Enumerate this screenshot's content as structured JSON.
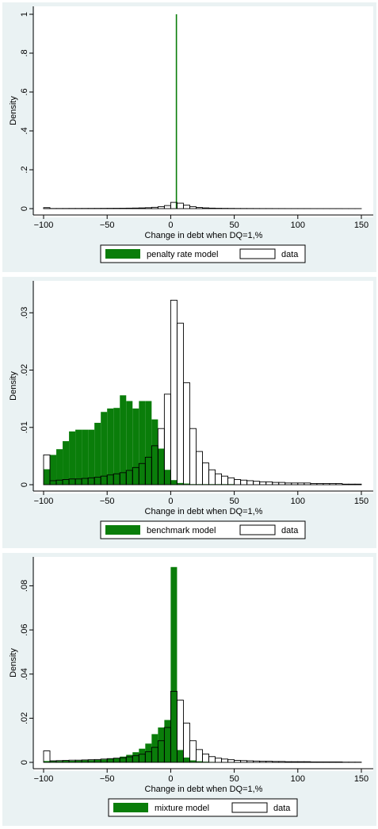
{
  "colors": {
    "model": "#0a7d0a",
    "data_fill": "#ffffff",
    "outline": "#000000",
    "panel_bg": "#eaf2f3",
    "plot_bg": "#ffffff"
  },
  "chart_data": [
    {
      "type": "bar",
      "subtype": "histogram",
      "xlabel": "Change in debt when DQ=1,%",
      "ylabel": "Density",
      "xlim": [
        -100,
        150
      ],
      "ylim": [
        0,
        1
      ],
      "x_ticks": [
        -100,
        -50,
        0,
        50,
        100,
        150
      ],
      "x_tick_labels": [
        "−100",
        "−50",
        "0",
        "50",
        "100",
        "150"
      ],
      "y_ticks": [
        0,
        0.2,
        0.4,
        0.6,
        0.8,
        1
      ],
      "y_tick_labels": [
        "0",
        ".2",
        ".4",
        ".6",
        ".8",
        "1"
      ],
      "grid": false,
      "legend_position": "bottom",
      "bin_width": 5,
      "model_bin_width": 1,
      "series": [
        {
          "name": "penalty rate model",
          "style": "filled",
          "bins": [
            [
              4,
              1.0
            ]
          ]
        },
        {
          "name": "data",
          "style": "outline",
          "bins": [
            [
              -100,
              0.0052
            ],
            [
              -95,
              0.0007
            ],
            [
              -90,
              0.0008
            ],
            [
              -85,
              0.0009
            ],
            [
              -80,
              0.001
            ],
            [
              -75,
              0.001
            ],
            [
              -70,
              0.0011
            ],
            [
              -65,
              0.0012
            ],
            [
              -60,
              0.0013
            ],
            [
              -55,
              0.0015
            ],
            [
              -50,
              0.0017
            ],
            [
              -45,
              0.0019
            ],
            [
              -40,
              0.0021
            ],
            [
              -35,
              0.0025
            ],
            [
              -30,
              0.003
            ],
            [
              -25,
              0.0037
            ],
            [
              -20,
              0.0048
            ],
            [
              -15,
              0.0068
            ],
            [
              -10,
              0.0098
            ],
            [
              -5,
              0.0158
            ],
            [
              0,
              0.0322
            ],
            [
              5,
              0.0282
            ],
            [
              10,
              0.0178
            ],
            [
              15,
              0.0098
            ],
            [
              20,
              0.0058
            ],
            [
              25,
              0.0038
            ],
            [
              30,
              0.0026
            ],
            [
              35,
              0.0019
            ],
            [
              40,
              0.0015
            ],
            [
              45,
              0.0012
            ],
            [
              50,
              0.0009
            ],
            [
              55,
              0.0008
            ],
            [
              60,
              0.0007
            ],
            [
              65,
              0.0006
            ],
            [
              70,
              0.0005
            ],
            [
              75,
              0.0005
            ],
            [
              80,
              0.0004
            ],
            [
              85,
              0.0004
            ],
            [
              90,
              0.0003
            ],
            [
              95,
              0.0003
            ],
            [
              100,
              0.0003
            ],
            [
              105,
              0.0003
            ],
            [
              110,
              0.0002
            ],
            [
              115,
              0.0002
            ],
            [
              120,
              0.0002
            ],
            [
              125,
              0.0002
            ],
            [
              130,
              0.0002
            ],
            [
              135,
              0.0001
            ],
            [
              140,
              0.0001
            ],
            [
              145,
              0.0001
            ]
          ]
        }
      ]
    },
    {
      "type": "bar",
      "subtype": "histogram",
      "xlabel": "Change in debt when DQ=1,%",
      "ylabel": "Density",
      "xlim": [
        -100,
        150
      ],
      "ylim": [
        0,
        0.0335
      ],
      "x_ticks": [
        -100,
        -50,
        0,
        50,
        100,
        150
      ],
      "x_tick_labels": [
        "−100",
        "−50",
        "0",
        "50",
        "100",
        "150"
      ],
      "y_ticks": [
        0,
        0.01,
        0.02,
        0.03
      ],
      "y_tick_labels": [
        "0",
        ".01",
        ".02",
        ".03"
      ],
      "grid": false,
      "legend_position": "bottom",
      "bin_width": 5,
      "model_bin_width": 5,
      "series": [
        {
          "name": "benchmark model",
          "style": "filled",
          "bins": [
            [
              -100,
              0.0027
            ],
            [
              -95,
              0.0052
            ],
            [
              -90,
              0.0062
            ],
            [
              -85,
              0.0076
            ],
            [
              -80,
              0.0093
            ],
            [
              -75,
              0.0096
            ],
            [
              -70,
              0.0096
            ],
            [
              -65,
              0.0096
            ],
            [
              -60,
              0.0108
            ],
            [
              -55,
              0.0127
            ],
            [
              -50,
              0.0133
            ],
            [
              -45,
              0.0134
            ],
            [
              -40,
              0.0156
            ],
            [
              -35,
              0.0146
            ],
            [
              -30,
              0.0133
            ],
            [
              -25,
              0.0146
            ],
            [
              -20,
              0.0146
            ],
            [
              -15,
              0.0114
            ],
            [
              -10,
              0.0063
            ],
            [
              -5,
              0.0026
            ],
            [
              0,
              0.0008
            ],
            [
              5,
              0.0003
            ],
            [
              10,
              0.0002
            ],
            [
              15,
              0.0001
            ],
            [
              20,
              0.0001
            ],
            [
              25,
              0.0001
            ],
            [
              30,
              0.0001
            ],
            [
              35,
              0.0001
            ],
            [
              40,
              0.0001
            ],
            [
              45,
              0.0001
            ]
          ]
        },
        {
          "name": "data",
          "style": "outline",
          "bins": [
            [
              -100,
              0.0052
            ],
            [
              -95,
              0.0007
            ],
            [
              -90,
              0.0008
            ],
            [
              -85,
              0.0009
            ],
            [
              -80,
              0.001
            ],
            [
              -75,
              0.001
            ],
            [
              -70,
              0.0011
            ],
            [
              -65,
              0.0012
            ],
            [
              -60,
              0.0013
            ],
            [
              -55,
              0.0015
            ],
            [
              -50,
              0.0017
            ],
            [
              -45,
              0.0019
            ],
            [
              -40,
              0.0021
            ],
            [
              -35,
              0.0025
            ],
            [
              -30,
              0.003
            ],
            [
              -25,
              0.0037
            ],
            [
              -20,
              0.0048
            ],
            [
              -15,
              0.0068
            ],
            [
              -10,
              0.0098
            ],
            [
              -5,
              0.0158
            ],
            [
              0,
              0.0322
            ],
            [
              5,
              0.0282
            ],
            [
              10,
              0.0178
            ],
            [
              15,
              0.0098
            ],
            [
              20,
              0.0058
            ],
            [
              25,
              0.0038
            ],
            [
              30,
              0.0026
            ],
            [
              35,
              0.0019
            ],
            [
              40,
              0.0015
            ],
            [
              45,
              0.0012
            ],
            [
              50,
              0.0009
            ],
            [
              55,
              0.0008
            ],
            [
              60,
              0.0007
            ],
            [
              65,
              0.0006
            ],
            [
              70,
              0.0005
            ],
            [
              75,
              0.0005
            ],
            [
              80,
              0.0004
            ],
            [
              85,
              0.0004
            ],
            [
              90,
              0.0003
            ],
            [
              95,
              0.0003
            ],
            [
              100,
              0.0003
            ],
            [
              105,
              0.0003
            ],
            [
              110,
              0.0002
            ],
            [
              115,
              0.0002
            ],
            [
              120,
              0.0002
            ],
            [
              125,
              0.0002
            ],
            [
              130,
              0.0002
            ],
            [
              135,
              0.0001
            ],
            [
              140,
              0.0001
            ],
            [
              145,
              0.0001
            ]
          ]
        }
      ]
    },
    {
      "type": "bar",
      "subtype": "histogram",
      "xlabel": "Change in debt when DQ=1,%",
      "ylabel": "Density",
      "xlim": [
        -100,
        150
      ],
      "ylim": [
        0,
        0.0895
      ],
      "x_ticks": [
        -100,
        -50,
        0,
        50,
        100,
        150
      ],
      "x_tick_labels": [
        "−100",
        "−50",
        "0",
        "50",
        "100",
        "150"
      ],
      "y_ticks": [
        0,
        0.02,
        0.04,
        0.06,
        0.08
      ],
      "y_tick_labels": [
        "0",
        ".02",
        ".04",
        ".06",
        ".08"
      ],
      "grid": false,
      "legend_position": "bottom",
      "bin_width": 5,
      "model_bin_width": 5,
      "series": [
        {
          "name": "mixture model",
          "style": "filled",
          "bins": [
            [
              -100,
              0.0006
            ],
            [
              -95,
              0.0006
            ],
            [
              -90,
              0.0006
            ],
            [
              -85,
              0.0007
            ],
            [
              -80,
              0.0007
            ],
            [
              -75,
              0.0008
            ],
            [
              -70,
              0.0009
            ],
            [
              -65,
              0.001
            ],
            [
              -60,
              0.0011
            ],
            [
              -55,
              0.0013
            ],
            [
              -50,
              0.0016
            ],
            [
              -45,
              0.002
            ],
            [
              -40,
              0.0026
            ],
            [
              -35,
              0.0034
            ],
            [
              -30,
              0.0046
            ],
            [
              -25,
              0.0062
            ],
            [
              -20,
              0.0085
            ],
            [
              -15,
              0.0128
            ],
            [
              -10,
              0.0158
            ],
            [
              -5,
              0.0192
            ],
            [
              0,
              0.0885
            ],
            [
              5,
              0.0056
            ],
            [
              10,
              0.0022
            ],
            [
              15,
              0.0009
            ],
            [
              20,
              0.0005
            ],
            [
              25,
              0.0003
            ],
            [
              30,
              0.0002
            ],
            [
              35,
              0.0001
            ],
            [
              40,
              0.0001
            ],
            [
              45,
              0.0001
            ],
            [
              50,
              0.0001
            ]
          ]
        },
        {
          "name": "data",
          "style": "outline",
          "bins": [
            [
              -100,
              0.0052
            ],
            [
              -95,
              0.0007
            ],
            [
              -90,
              0.0008
            ],
            [
              -85,
              0.0009
            ],
            [
              -80,
              0.001
            ],
            [
              -75,
              0.001
            ],
            [
              -70,
              0.0011
            ],
            [
              -65,
              0.0012
            ],
            [
              -60,
              0.0013
            ],
            [
              -55,
              0.0015
            ],
            [
              -50,
              0.0017
            ],
            [
              -45,
              0.0019
            ],
            [
              -40,
              0.0021
            ],
            [
              -35,
              0.0025
            ],
            [
              -30,
              0.003
            ],
            [
              -25,
              0.0037
            ],
            [
              -20,
              0.0048
            ],
            [
              -15,
              0.0068
            ],
            [
              -10,
              0.0098
            ],
            [
              -5,
              0.0158
            ],
            [
              0,
              0.0322
            ],
            [
              5,
              0.0282
            ],
            [
              10,
              0.0178
            ],
            [
              15,
              0.0098
            ],
            [
              20,
              0.0058
            ],
            [
              25,
              0.0038
            ],
            [
              30,
              0.0026
            ],
            [
              35,
              0.0019
            ],
            [
              40,
              0.0015
            ],
            [
              45,
              0.0012
            ],
            [
              50,
              0.0009
            ],
            [
              55,
              0.0008
            ],
            [
              60,
              0.0007
            ],
            [
              65,
              0.0006
            ],
            [
              70,
              0.0005
            ],
            [
              75,
              0.0005
            ],
            [
              80,
              0.0004
            ],
            [
              85,
              0.0004
            ],
            [
              90,
              0.0003
            ],
            [
              95,
              0.0003
            ],
            [
              100,
              0.0003
            ],
            [
              105,
              0.0003
            ],
            [
              110,
              0.0002
            ],
            [
              115,
              0.0002
            ],
            [
              120,
              0.0002
            ],
            [
              125,
              0.0002
            ],
            [
              130,
              0.0002
            ],
            [
              135,
              0.0001
            ],
            [
              140,
              0.0001
            ],
            [
              145,
              0.0001
            ]
          ]
        }
      ]
    }
  ]
}
